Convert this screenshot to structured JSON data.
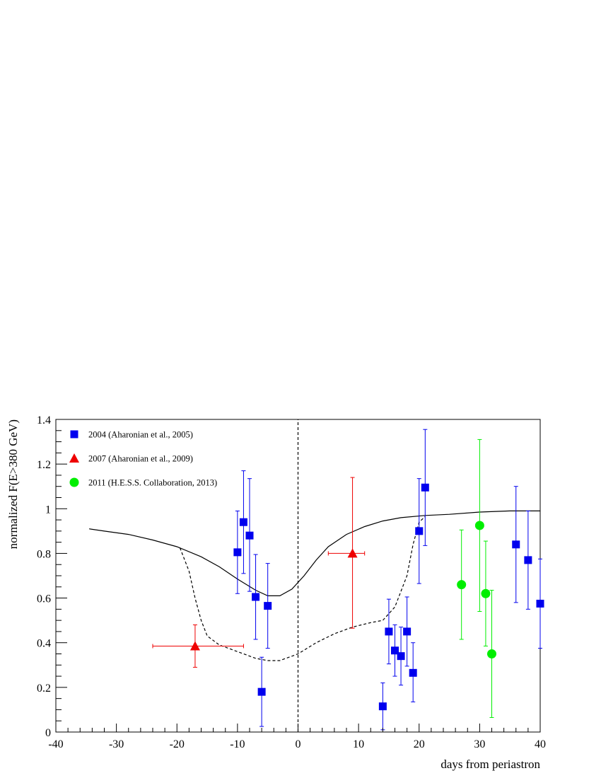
{
  "chart_data": {
    "type": "scatter",
    "xlabel": "days from periastron",
    "ylabel": "normalized F(E>380 GeV)",
    "xlim": [
      -40,
      40
    ],
    "ylim": [
      0,
      1.4
    ],
    "x_ticks": [
      "-40",
      "-30",
      "-20",
      "-10",
      "0",
      "10",
      "20",
      "30",
      "40"
    ],
    "y_ticks": [
      "0",
      "0.2",
      "0.4",
      "0.6",
      "0.8",
      "1",
      "1.2",
      "1.4"
    ],
    "grid": false,
    "legend_position": "top-left",
    "series": [
      {
        "name": "2004 (Aharonian et al., 2005)",
        "marker": "square",
        "color": "#0000ee",
        "points": [
          {
            "x": -10,
            "y": 0.805,
            "yerr_low": 0.185,
            "yerr_high": 0.185
          },
          {
            "x": -9,
            "y": 0.94,
            "yerr_low": 0.23,
            "yerr_high": 0.23
          },
          {
            "x": -8,
            "y": 0.88,
            "yerr_low": 0.25,
            "yerr_high": 0.255
          },
          {
            "x": -7,
            "y": 0.605,
            "yerr_low": 0.19,
            "yerr_high": 0.19
          },
          {
            "x": -6,
            "y": 0.18,
            "yerr_low": 0.155,
            "yerr_high": 0.155
          },
          {
            "x": -5,
            "y": 0.565,
            "yerr_low": 0.19,
            "yerr_high": 0.19
          },
          {
            "x": 14,
            "y": 0.115,
            "yerr_low": 0.105,
            "yerr_high": 0.105
          },
          {
            "x": 15,
            "y": 0.45,
            "yerr_low": 0.145,
            "yerr_high": 0.145
          },
          {
            "x": 16,
            "y": 0.365,
            "yerr_low": 0.115,
            "yerr_high": 0.115
          },
          {
            "x": 17,
            "y": 0.34,
            "yerr_low": 0.13,
            "yerr_high": 0.13
          },
          {
            "x": 18,
            "y": 0.45,
            "yerr_low": 0.155,
            "yerr_high": 0.155
          },
          {
            "x": 19,
            "y": 0.265,
            "yerr_low": 0.13,
            "yerr_high": 0.135
          },
          {
            "x": 20,
            "y": 0.9,
            "yerr_low": 0.235,
            "yerr_high": 0.235
          },
          {
            "x": 21,
            "y": 1.095,
            "yerr_low": 0.26,
            "yerr_high": 0.26
          },
          {
            "x": 36,
            "y": 0.84,
            "yerr_low": 0.26,
            "yerr_high": 0.26
          },
          {
            "x": 38,
            "y": 0.77,
            "yerr_low": 0.22,
            "yerr_high": 0.22
          },
          {
            "x": 40,
            "y": 0.575,
            "yerr_low": 0.2,
            "yerr_high": 0.2
          }
        ]
      },
      {
        "name": "2007 (Aharonian et al., 2009)",
        "marker": "triangle",
        "color": "#ee0000",
        "points": [
          {
            "x": -17,
            "y": 0.385,
            "xerr_low": 7,
            "xerr_high": 8,
            "yerr_low": 0.095,
            "yerr_high": 0.095
          },
          {
            "x": 9,
            "y": 0.8,
            "xerr_low": 4,
            "xerr_high": 2,
            "yerr_low": 0.335,
            "yerr_high": 0.34
          }
        ]
      },
      {
        "name": "2011 (H.E.S.S. Collaboration, 2013)",
        "marker": "circle",
        "color": "#00ee00",
        "points": [
          {
            "x": 27,
            "y": 0.66,
            "yerr_low": 0.245,
            "yerr_high": 0.245
          },
          {
            "x": 30,
            "y": 0.925,
            "yerr_low": 0.385,
            "yerr_high": 0.385
          },
          {
            "x": 31,
            "y": 0.62,
            "yerr_low": 0.235,
            "yerr_high": 0.235
          },
          {
            "x": 32,
            "y": 0.35,
            "yerr_low": 0.285,
            "yerr_high": 0.285
          }
        ]
      }
    ],
    "curves": [
      {
        "style": "solid",
        "color": "#000000",
        "points": [
          [
            -34.5,
            0.91
          ],
          [
            -32,
            0.9
          ],
          [
            -28,
            0.885
          ],
          [
            -24,
            0.86
          ],
          [
            -20,
            0.83
          ],
          [
            -16,
            0.785
          ],
          [
            -13,
            0.74
          ],
          [
            -10,
            0.685
          ],
          [
            -7,
            0.635
          ],
          [
            -5,
            0.61
          ],
          [
            -3,
            0.61
          ],
          [
            -1,
            0.64
          ],
          [
            1,
            0.7
          ],
          [
            3,
            0.77
          ],
          [
            5,
            0.83
          ],
          [
            8,
            0.885
          ],
          [
            11,
            0.92
          ],
          [
            14,
            0.945
          ],
          [
            17,
            0.96
          ],
          [
            21,
            0.97
          ],
          [
            25,
            0.975
          ],
          [
            30,
            0.985
          ],
          [
            35,
            0.99
          ],
          [
            40,
            0.99
          ]
        ]
      },
      {
        "style": "dashed",
        "color": "#000000",
        "points": [
          [
            -19.5,
            0.825
          ],
          [
            -18,
            0.72
          ],
          [
            -17,
            0.6
          ],
          [
            -16,
            0.5
          ],
          [
            -15,
            0.43
          ],
          [
            -13,
            0.39
          ],
          [
            -10,
            0.36
          ],
          [
            -7,
            0.33
          ],
          [
            -5,
            0.32
          ],
          [
            -3,
            0.32
          ],
          [
            0,
            0.35
          ],
          [
            3,
            0.4
          ],
          [
            6,
            0.44
          ],
          [
            9,
            0.47
          ],
          [
            12,
            0.49
          ],
          [
            14,
            0.5
          ],
          [
            16,
            0.56
          ],
          [
            18,
            0.7
          ],
          [
            19,
            0.84
          ],
          [
            20,
            0.94
          ],
          [
            21,
            0.965
          ]
        ]
      },
      {
        "style": "dashed",
        "color": "#000000",
        "points": [
          [
            0,
            0
          ],
          [
            0,
            1.4
          ]
        ]
      }
    ]
  }
}
